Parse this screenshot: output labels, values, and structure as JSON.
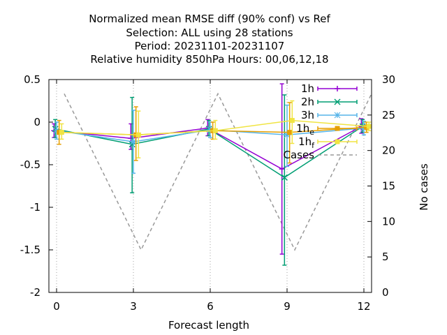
{
  "chart_data": {
    "type": "line",
    "title_lines": [
      "Normalized mean RMSE diff (90% conf) vs Ref",
      "Selection: ALL using    28 stations",
      "Period: 20231101-20231107",
      "Relative humidity 850hPa   Hours:  00,06,12,18"
    ],
    "xlabel": "Forecast length",
    "ylabel_right": "No cases",
    "xlim": [
      -0.3,
      12.3
    ],
    "ylim": [
      -2,
      0.5
    ],
    "y2lim": [
      0,
      30
    ],
    "x_ticks": [
      0,
      3,
      6,
      9,
      12
    ],
    "y_ticks": [
      "0.5",
      "0",
      "-0.5",
      "-1",
      "-1.5",
      "-2"
    ],
    "y_tick_values": [
      0.5,
      0,
      -0.5,
      -1,
      -1.5,
      -2
    ],
    "y2_ticks": [
      0,
      5,
      10,
      15,
      20,
      25,
      30
    ],
    "grid": "dotted x only",
    "legend_position": "top-right",
    "series": [
      {
        "name": "1h",
        "color": "#9400d3",
        "marker": "plus",
        "points": [
          {
            "x": -0.1,
            "y": -0.1,
            "lo": -0.18,
            "hi": -0.02
          },
          {
            "x": 2.9,
            "y": -0.19,
            "lo": -0.32,
            "hi": -0.02
          },
          {
            "x": 5.9,
            "y": -0.07,
            "lo": -0.16,
            "hi": 0.03
          },
          {
            "x": 8.8,
            "y": -0.55,
            "lo": -1.55,
            "hi": 0.45
          },
          {
            "x": 11.9,
            "y": -0.05,
            "lo": -0.13,
            "hi": 0.04
          }
        ]
      },
      {
        "name": "2h",
        "color": "#009e73",
        "marker": "x",
        "points": [
          {
            "x": -0.05,
            "y": -0.08,
            "lo": -0.18,
            "hi": 0.03
          },
          {
            "x": 2.95,
            "y": -0.26,
            "lo": -0.83,
            "hi": 0.29
          },
          {
            "x": 5.95,
            "y": -0.08,
            "lo": -0.16,
            "hi": 0.02
          },
          {
            "x": 8.9,
            "y": -0.65,
            "lo": -1.68,
            "hi": 0.32
          },
          {
            "x": 11.95,
            "y": -0.05,
            "lo": -0.12,
            "hi": 0.03
          }
        ]
      },
      {
        "name": "3h",
        "color": "#56b4e9",
        "marker": "star",
        "points": [
          {
            "x": 0.0,
            "y": -0.1,
            "lo": -0.2,
            "hi": 0.0
          },
          {
            "x": 3.0,
            "y": -0.23,
            "lo": -0.6,
            "hi": 0.14
          },
          {
            "x": 6.0,
            "y": -0.09,
            "lo": -0.18,
            "hi": 0.0
          },
          {
            "x": 9.0,
            "y": -0.15,
            "lo": -0.52,
            "hi": 0.2
          },
          {
            "x": 12.0,
            "y": -0.07,
            "lo": -0.15,
            "hi": 0.01
          }
        ]
      },
      {
        "name": "1h_e",
        "color": "#e69f00",
        "marker": "square",
        "points": [
          {
            "x": 0.1,
            "y": -0.12,
            "lo": -0.26,
            "hi": 0.02
          },
          {
            "x": 3.1,
            "y": -0.15,
            "lo": -0.45,
            "hi": 0.18
          },
          {
            "x": 6.1,
            "y": -0.1,
            "lo": -0.2,
            "hi": 0.0
          },
          {
            "x": 9.1,
            "y": -0.12,
            "lo": -0.48,
            "hi": 0.23
          },
          {
            "x": 12.1,
            "y": -0.06,
            "lo": -0.12,
            "hi": 0.0
          }
        ]
      },
      {
        "name": "1h_f",
        "color": "#f0e442",
        "marker": "square",
        "points": [
          {
            "x": 0.2,
            "y": -0.12,
            "lo": -0.2,
            "hi": -0.02
          },
          {
            "x": 3.2,
            "y": -0.15,
            "lo": -0.42,
            "hi": 0.13
          },
          {
            "x": 6.2,
            "y": -0.1,
            "lo": -0.2,
            "hi": 0.02
          },
          {
            "x": 9.2,
            "y": 0.02,
            "lo": -0.25,
            "hi": 0.25
          },
          {
            "x": 12.2,
            "y": -0.05,
            "lo": -0.1,
            "hi": 0.0
          }
        ]
      }
    ],
    "cases": {
      "name": "Cases",
      "color": "#999999",
      "style": "dashed",
      "points": [
        {
          "x": 0.3,
          "cases": 28
        },
        {
          "x": 3.3,
          "cases": 6
        },
        {
          "x": 6.3,
          "cases": 28
        },
        {
          "x": 9.3,
          "cases": 6
        },
        {
          "x": 12.3,
          "cases": 28
        }
      ]
    }
  }
}
